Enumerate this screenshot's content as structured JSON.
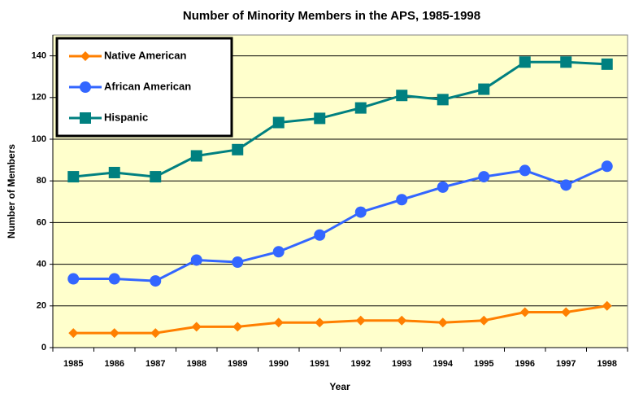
{
  "chart_data": {
    "type": "line",
    "title": "Number of Minority Members in the APS, 1985-1998",
    "x_label": "Year",
    "y_label": "Number of Members",
    "categories": [
      "1985",
      "1986",
      "1987",
      "1988",
      "1989",
      "1990",
      "1991",
      "1992",
      "1993",
      "1994",
      "1995",
      "1996",
      "1997",
      "1998"
    ],
    "series": [
      {
        "name": "Native  American",
        "color": "#ff7f00",
        "marker": "diamond",
        "values": [
          7,
          7,
          7,
          10,
          10,
          12,
          12,
          13,
          13,
          12,
          13,
          17,
          17,
          20
        ]
      },
      {
        "name": "African American",
        "color": "#3366ff",
        "marker": "circle",
        "values": [
          33,
          33,
          32,
          42,
          41,
          46,
          54,
          65,
          71,
          77,
          82,
          85,
          78,
          87
        ]
      },
      {
        "name": "Hispanic",
        "color": "#008080",
        "marker": "square",
        "values": [
          82,
          84,
          82,
          92,
          95,
          108,
          110,
          115,
          121,
          119,
          124,
          137,
          137,
          136
        ]
      }
    ],
    "ylim": [
      0,
      150
    ],
    "yticks": [
      0,
      20,
      40,
      60,
      80,
      100,
      120,
      140
    ],
    "grid": true,
    "legend": "top-left",
    "plot_background": "#ffffcc"
  }
}
